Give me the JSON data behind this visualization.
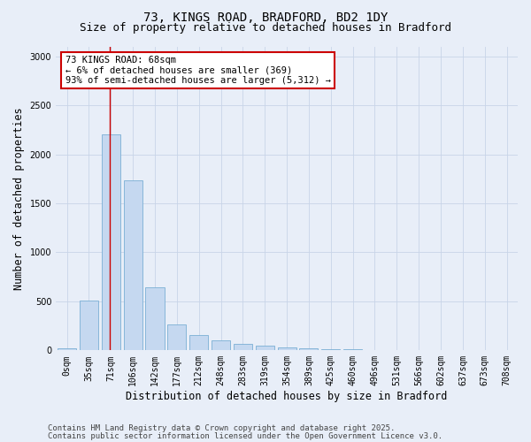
{
  "title_line1": "73, KINGS ROAD, BRADFORD, BD2 1DY",
  "title_line2": "Size of property relative to detached houses in Bradford",
  "xlabel": "Distribution of detached houses by size in Bradford",
  "ylabel": "Number of detached properties",
  "categories": [
    "0sqm",
    "35sqm",
    "71sqm",
    "106sqm",
    "142sqm",
    "177sqm",
    "212sqm",
    "248sqm",
    "283sqm",
    "319sqm",
    "354sqm",
    "389sqm",
    "425sqm",
    "460sqm",
    "496sqm",
    "531sqm",
    "566sqm",
    "602sqm",
    "637sqm",
    "673sqm",
    "708sqm"
  ],
  "values": [
    20,
    510,
    2200,
    1730,
    640,
    260,
    155,
    100,
    65,
    50,
    30,
    20,
    15,
    10,
    5,
    5,
    0,
    0,
    0,
    0,
    0
  ],
  "bar_color": "#c5d8f0",
  "bar_edge_color": "#7aafd4",
  "vline_color": "#cc0000",
  "vline_x": 1.93,
  "annotation_text": "73 KINGS ROAD: 68sqm\n← 6% of detached houses are smaller (369)\n93% of semi-detached houses are larger (5,312) →",
  "annotation_box_color": "#ffffff",
  "annotation_box_edge": "#cc0000",
  "ylim": [
    0,
    3100
  ],
  "yticks": [
    0,
    500,
    1000,
    1500,
    2000,
    2500,
    3000
  ],
  "footer_line1": "Contains HM Land Registry data © Crown copyright and database right 2025.",
  "footer_line2": "Contains public sector information licensed under the Open Government Licence v3.0.",
  "background_color": "#e8eef8",
  "plot_bg_color": "#e8eef8",
  "grid_color": "#c8d4e8",
  "title_fontsize": 10,
  "subtitle_fontsize": 9,
  "axis_label_fontsize": 8.5,
  "tick_fontsize": 7,
  "annotation_fontsize": 7.5,
  "footer_fontsize": 6.5
}
